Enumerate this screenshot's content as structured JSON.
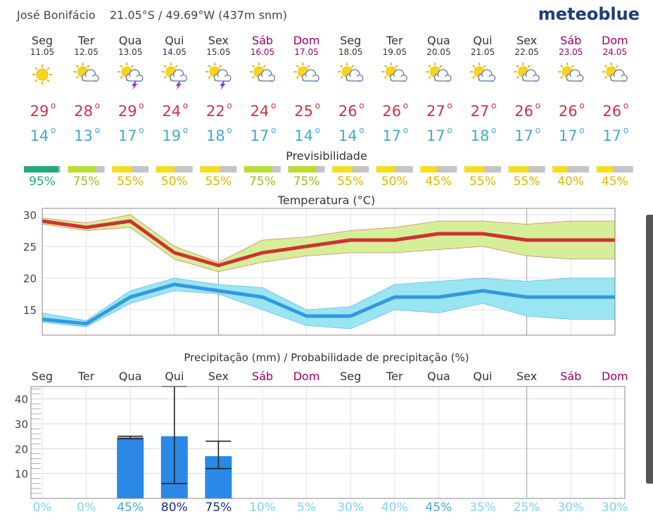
{
  "header": {
    "location": "José Bonifácio",
    "coords": "21.05°S / 49.69°W (437m snm)",
    "brand": "meteoblue"
  },
  "days": [
    {
      "name": "Seg",
      "date": "11.05",
      "weekend": false,
      "icon": "sun",
      "high": "29",
      "low": "14",
      "pred": 95,
      "pred_label": "95%",
      "pred_color": "#22aa77",
      "precip": 0,
      "precip_min": null,
      "precip_max": null,
      "prob": "0%"
    },
    {
      "name": "Ter",
      "date": "12.05",
      "weekend": false,
      "icon": "sun-cloud",
      "high": "28",
      "low": "13",
      "pred": 75,
      "pred_label": "75%",
      "pred_color": "#b8dd33",
      "precip": 0,
      "precip_min": null,
      "precip_max": null,
      "prob": "0%"
    },
    {
      "name": "Qua",
      "date": "13.05",
      "weekend": false,
      "icon": "sun-storm",
      "high": "29",
      "low": "17",
      "pred": 55,
      "pred_label": "55%",
      "pred_color": "#f5dd22",
      "precip": 24.5,
      "precip_min": 24,
      "precip_max": 25,
      "prob": "45%"
    },
    {
      "name": "Qui",
      "date": "14.05",
      "weekend": false,
      "icon": "sun-storm",
      "high": "24",
      "low": "19",
      "pred": 50,
      "pred_label": "50%",
      "pred_color": "#f5dd22",
      "precip": 25,
      "precip_min": 6,
      "precip_max": 45,
      "prob": "80%"
    },
    {
      "name": "Sex",
      "date": "15.05",
      "weekend": false,
      "icon": "sun-storm",
      "high": "22",
      "low": "18",
      "pred": 55,
      "pred_label": "55%",
      "pred_color": "#f5dd22",
      "precip": 17,
      "precip_min": 12,
      "precip_max": 23,
      "prob": "75%"
    },
    {
      "name": "Sáb",
      "date": "16.05",
      "weekend": true,
      "icon": "sun-cloud",
      "high": "24",
      "low": "17",
      "pred": 75,
      "pred_label": "75%",
      "pred_color": "#b8dd33",
      "precip": 0,
      "precip_min": null,
      "precip_max": null,
      "prob": "10%"
    },
    {
      "name": "Dom",
      "date": "17.05",
      "weekend": true,
      "icon": "sun-cloud",
      "high": "25",
      "low": "14",
      "pred": 75,
      "pred_label": "75%",
      "pred_color": "#b8dd33",
      "precip": 0,
      "precip_min": null,
      "precip_max": null,
      "prob": "5%"
    },
    {
      "name": "Seg",
      "date": "18.05",
      "weekend": false,
      "icon": "sun-cloud",
      "high": "26",
      "low": "14",
      "pred": 55,
      "pred_label": "55%",
      "pred_color": "#f5dd22",
      "precip": 0,
      "precip_min": null,
      "precip_max": null,
      "prob": "30%"
    },
    {
      "name": "Ter",
      "date": "19.05",
      "weekend": false,
      "icon": "sun-cloud",
      "high": "26",
      "low": "17",
      "pred": 50,
      "pred_label": "50%",
      "pred_color": "#f5dd22",
      "precip": 0,
      "precip_min": null,
      "precip_max": null,
      "prob": "40%"
    },
    {
      "name": "Qua",
      "date": "20.05",
      "weekend": false,
      "icon": "sun-cloud",
      "high": "27",
      "low": "17",
      "pred": 45,
      "pred_label": "45%",
      "pred_color": "#f5dd22",
      "precip": 0,
      "precip_min": null,
      "precip_max": null,
      "prob": "45%"
    },
    {
      "name": "Qui",
      "date": "21.05",
      "weekend": false,
      "icon": "sun-cloud",
      "high": "27",
      "low": "18",
      "pred": 55,
      "pred_label": "55%",
      "pred_color": "#f5dd22",
      "precip": 0,
      "precip_min": null,
      "precip_max": null,
      "prob": "35%"
    },
    {
      "name": "Sex",
      "date": "22.05",
      "weekend": false,
      "icon": "sun-cloud",
      "high": "26",
      "low": "17",
      "pred": 55,
      "pred_label": "55%",
      "pred_color": "#f5dd22",
      "precip": 0,
      "precip_min": null,
      "precip_max": null,
      "prob": "25%"
    },
    {
      "name": "Sáb",
      "date": "23.05",
      "weekend": true,
      "icon": "sun-cloud",
      "high": "26",
      "low": "17",
      "pred": 40,
      "pred_label": "40%",
      "pred_color": "#f5dd22",
      "precip": 0,
      "precip_min": null,
      "precip_max": null,
      "prob": "30%"
    },
    {
      "name": "Dom",
      "date": "24.05",
      "weekend": true,
      "icon": "sun-cloud",
      "high": "26",
      "low": "17",
      "pred": 45,
      "pred_label": "45%",
      "pred_color": "#f5dd22",
      "precip": 0,
      "precip_min": null,
      "precip_max": null,
      "prob": "30%"
    }
  ],
  "labels": {
    "predictability": "Previsibilidade",
    "temperature": "Temperatura (°C)",
    "precipitation": "Precipitação (mm) / Probabilidade de precipitação (%)",
    "degree": "o"
  },
  "colors": {
    "weekend": "#990066",
    "high_text": "#cc3344",
    "low_text": "#44aacc",
    "max_line": "#cc3333",
    "max_band": "#d7ee99",
    "min_line": "#3399dd",
    "min_band": "#99e5f2",
    "bar": "#2b88e6",
    "prob_low": "#7cd4ee",
    "prob_mid": "#44aacc",
    "prob_high": "#1a2a77"
  },
  "chart_data": [
    {
      "type": "line",
      "title": "Temperatura (°C)",
      "categories": [
        "11.05",
        "12.05",
        "13.05",
        "14.05",
        "15.05",
        "16.05",
        "17.05",
        "18.05",
        "19.05",
        "20.05",
        "21.05",
        "22.05",
        "23.05",
        "24.05"
      ],
      "ylim": [
        11,
        31
      ],
      "yticks": [
        15,
        20,
        25,
        30
      ],
      "series": [
        {
          "name": "max",
          "values": [
            29,
            28,
            29,
            24,
            22,
            24,
            25,
            26,
            26,
            27,
            27,
            26,
            26,
            26
          ],
          "band_low": [
            28.5,
            27.5,
            28,
            23,
            21,
            22.5,
            23.5,
            24,
            24,
            24.5,
            25,
            23.5,
            23,
            23
          ],
          "band_high": [
            29.5,
            28.7,
            30,
            25,
            22.5,
            26,
            26.5,
            27.5,
            28,
            29,
            29,
            28.5,
            29,
            29
          ]
        },
        {
          "name": "min",
          "values": [
            13.5,
            12.8,
            17,
            19,
            18,
            17,
            14,
            14,
            17,
            17,
            18,
            17,
            17,
            17
          ],
          "band_low": [
            13,
            12.3,
            16,
            18,
            17.5,
            15,
            12.5,
            12,
            15,
            14.5,
            16,
            14,
            13.5,
            13.5
          ],
          "band_high": [
            14.5,
            13.3,
            18,
            20,
            19,
            18.5,
            15,
            15.5,
            19,
            19.5,
            20,
            19.5,
            20,
            20
          ]
        }
      ]
    },
    {
      "type": "bar",
      "title": "Precipitação (mm) / Probabilidade de precipitação (%)",
      "categories": [
        "Seg",
        "Ter",
        "Qua",
        "Qui",
        "Sex",
        "Sáb",
        "Dom",
        "Seg",
        "Ter",
        "Qua",
        "Qui",
        "Sex",
        "Sáb",
        "Dom"
      ],
      "ylim": [
        0,
        45
      ],
      "yticks": [
        10,
        20,
        30,
        40
      ],
      "values": [
        0,
        0,
        24.5,
        25,
        17,
        0,
        0,
        0,
        0,
        0,
        0,
        0,
        0,
        0
      ],
      "error_min": [
        null,
        null,
        24,
        6,
        12,
        null,
        null,
        null,
        null,
        null,
        null,
        null,
        null,
        null
      ],
      "error_max": [
        null,
        null,
        25,
        45,
        23,
        null,
        null,
        null,
        null,
        null,
        null,
        null,
        null,
        null
      ],
      "probability_pct": [
        0,
        0,
        45,
        80,
        75,
        10,
        5,
        30,
        40,
        45,
        35,
        25,
        30,
        30
      ]
    }
  ]
}
